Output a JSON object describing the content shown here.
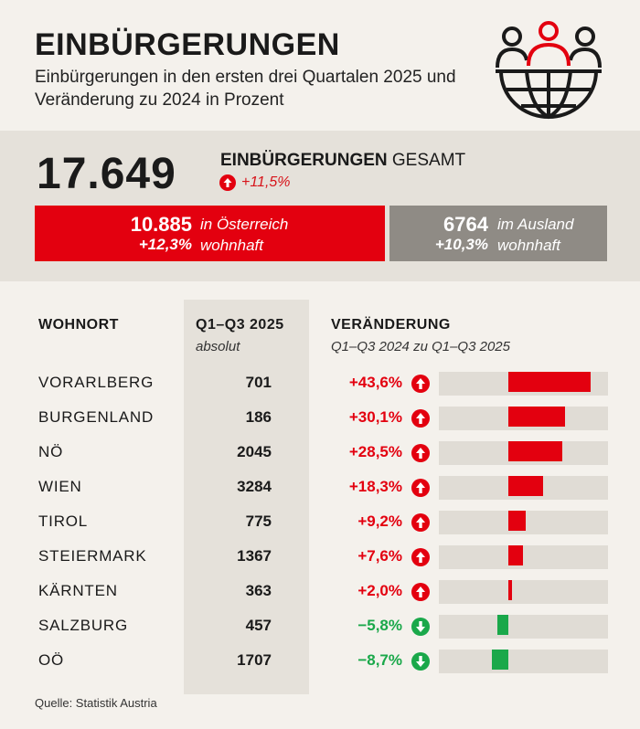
{
  "header": {
    "title": "EINBÜRGERUNGEN",
    "subtitle": "Einbürgerungen in den ersten drei Quartalen 2025 und Veränderung zu 2024 in Prozent"
  },
  "total": {
    "value": "17.649",
    "label_bold": "EINBÜRGERUNGEN",
    "label_rest": " GESAMT",
    "change": "+11,5%"
  },
  "split": {
    "austria": {
      "value": "10.885",
      "change": "+12,3%",
      "label_line1": "in Österreich",
      "label_line2": "wohnhaft"
    },
    "abroad": {
      "value": "6764",
      "change": "+10,3%",
      "label_line1": "im Ausland",
      "label_line2": "wohnhaft"
    }
  },
  "table": {
    "col_place": "WOHNORT",
    "col_abs": "Q1–Q3 2025",
    "col_abs_sub": "absolut",
    "col_change": "VERÄNDERUNG",
    "col_change_sub": "Q1–Q3 2024 zu Q1–Q3 2025"
  },
  "colors": {
    "positive": "#e3000f",
    "negative": "#1aa84a",
    "total_box": "#e3000f",
    "abroad_box": "#8f8b85"
  },
  "chart_data": {
    "type": "bar",
    "title": "Veränderung Q1–Q3 2024 zu Q1–Q3 2025",
    "categories": [
      "VORARLBERG",
      "BURGENLAND",
      "NÖ",
      "WIEN",
      "TIROL",
      "STEIERMARK",
      "KÄRNTEN",
      "SALZBURG",
      "OÖ"
    ],
    "absolute": [
      "701",
      "186",
      "2045",
      "3284",
      "775",
      "1367",
      "363",
      "457",
      "1707"
    ],
    "change_labels": [
      "+43,6%",
      "+30,1%",
      "+28,5%",
      "+18,3%",
      "+9,2%",
      "+7,6%",
      "+2,0%",
      "−5,8%",
      "−8,7%"
    ],
    "values": [
      43.6,
      30.1,
      28.5,
      18.3,
      9.2,
      7.6,
      2.0,
      -5.8,
      -8.7
    ],
    "xlim": [
      -37,
      53
    ],
    "xlabel": "",
    "ylabel": ""
  },
  "source": "Quelle: Statistik Austria"
}
